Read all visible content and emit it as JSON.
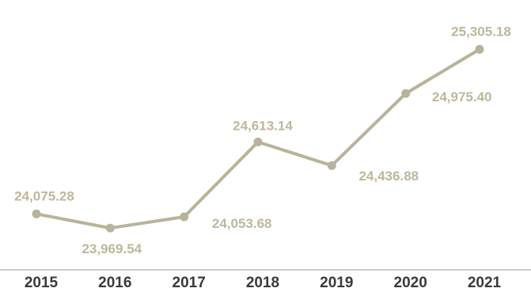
{
  "chart_data": {
    "type": "line",
    "title": "",
    "xlabel": "",
    "ylabel": "",
    "categories": [
      "2015",
      "2016",
      "2017",
      "2018",
      "2019",
      "2020",
      "2021"
    ],
    "series": [
      {
        "values": [
          24075.28,
          23969.54,
          24053.68,
          24613.14,
          24436.88,
          24975.4,
          25305.18
        ],
        "labels": [
          "24,075.28",
          "23,969.54",
          "24,053.68",
          "24,613.14",
          "24,436.88",
          "24,975.40",
          "25,305.18"
        ]
      }
    ],
    "ylim": [
      23400,
      25500
    ],
    "grid": false,
    "legend": "none",
    "colors": {
      "line": "#b8b39a",
      "label": "#bdb89c",
      "axis": "#9a9a9a",
      "tick_text": "#3a3a3a"
    }
  }
}
